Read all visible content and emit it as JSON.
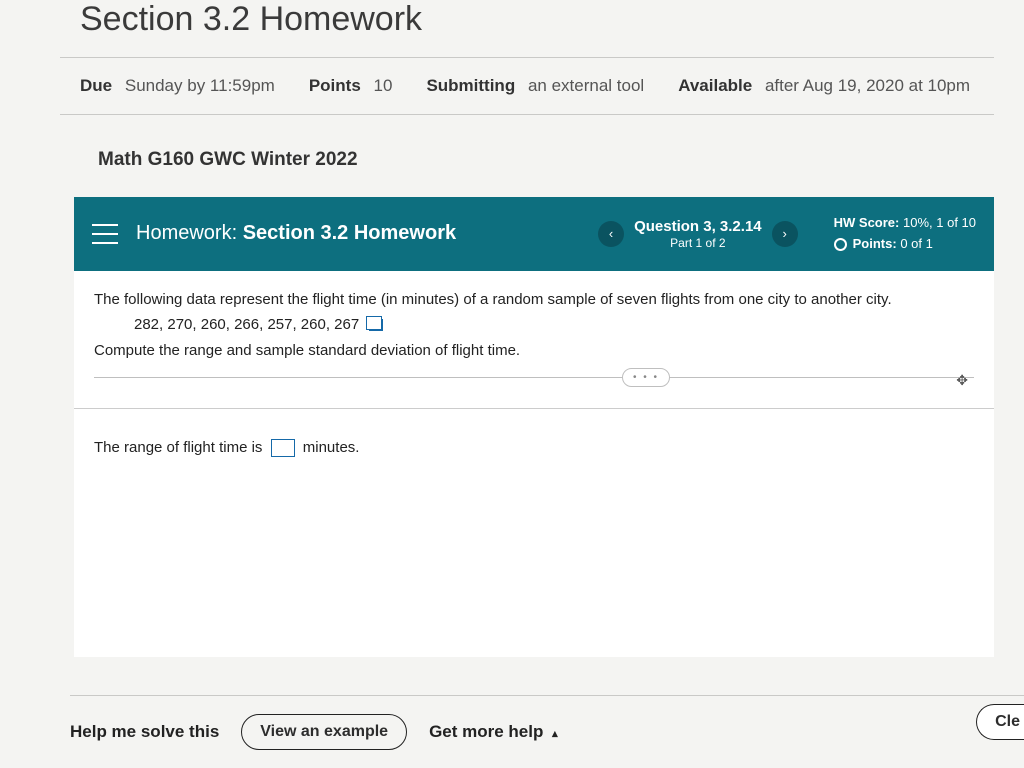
{
  "assignment": {
    "title": "Section 3.2 Homework",
    "due_label": "Due",
    "due_value": "Sunday by 11:59pm",
    "points_label": "Points",
    "points_value": "10",
    "submitting_label": "Submitting",
    "submitting_value": "an external tool",
    "available_label": "Available",
    "available_value": "after Aug 19, 2020 at 10pm"
  },
  "course": "Math G160 GWC Winter 2022",
  "tealbar": {
    "hw_label": "Homework:",
    "hw_name": "Section 3.2 Homework",
    "prev": "‹",
    "next": "›",
    "question_line1": "Question 3, 3.2.14",
    "question_line2": "Part 1 of 2",
    "score_label": "HW Score:",
    "score_value": "10%, 1 of 10",
    "points_label": "Points:",
    "points_value": "0 of 1"
  },
  "question": {
    "intro": "The following data represent the flight time (in minutes) of a random sample of seven flights from one city to another city.",
    "data": "282, 270, 260, 266, 257, 260, 267",
    "task": "Compute the range and sample standard deviation of flight time.",
    "answer_before": "The range of flight time is",
    "answer_after": "minutes.",
    "dots": "• • •",
    "move": "✥"
  },
  "footer": {
    "help": "Help me solve this",
    "example": "View an example",
    "more": "Get more help",
    "caret": "▴",
    "clear": "Cle"
  },
  "colors": {
    "teal": "#0d6f7f",
    "teal_dark": "#0a5360",
    "link": "#1569a8",
    "border": "#c9c9c7",
    "bg": "#f4f4f2"
  }
}
